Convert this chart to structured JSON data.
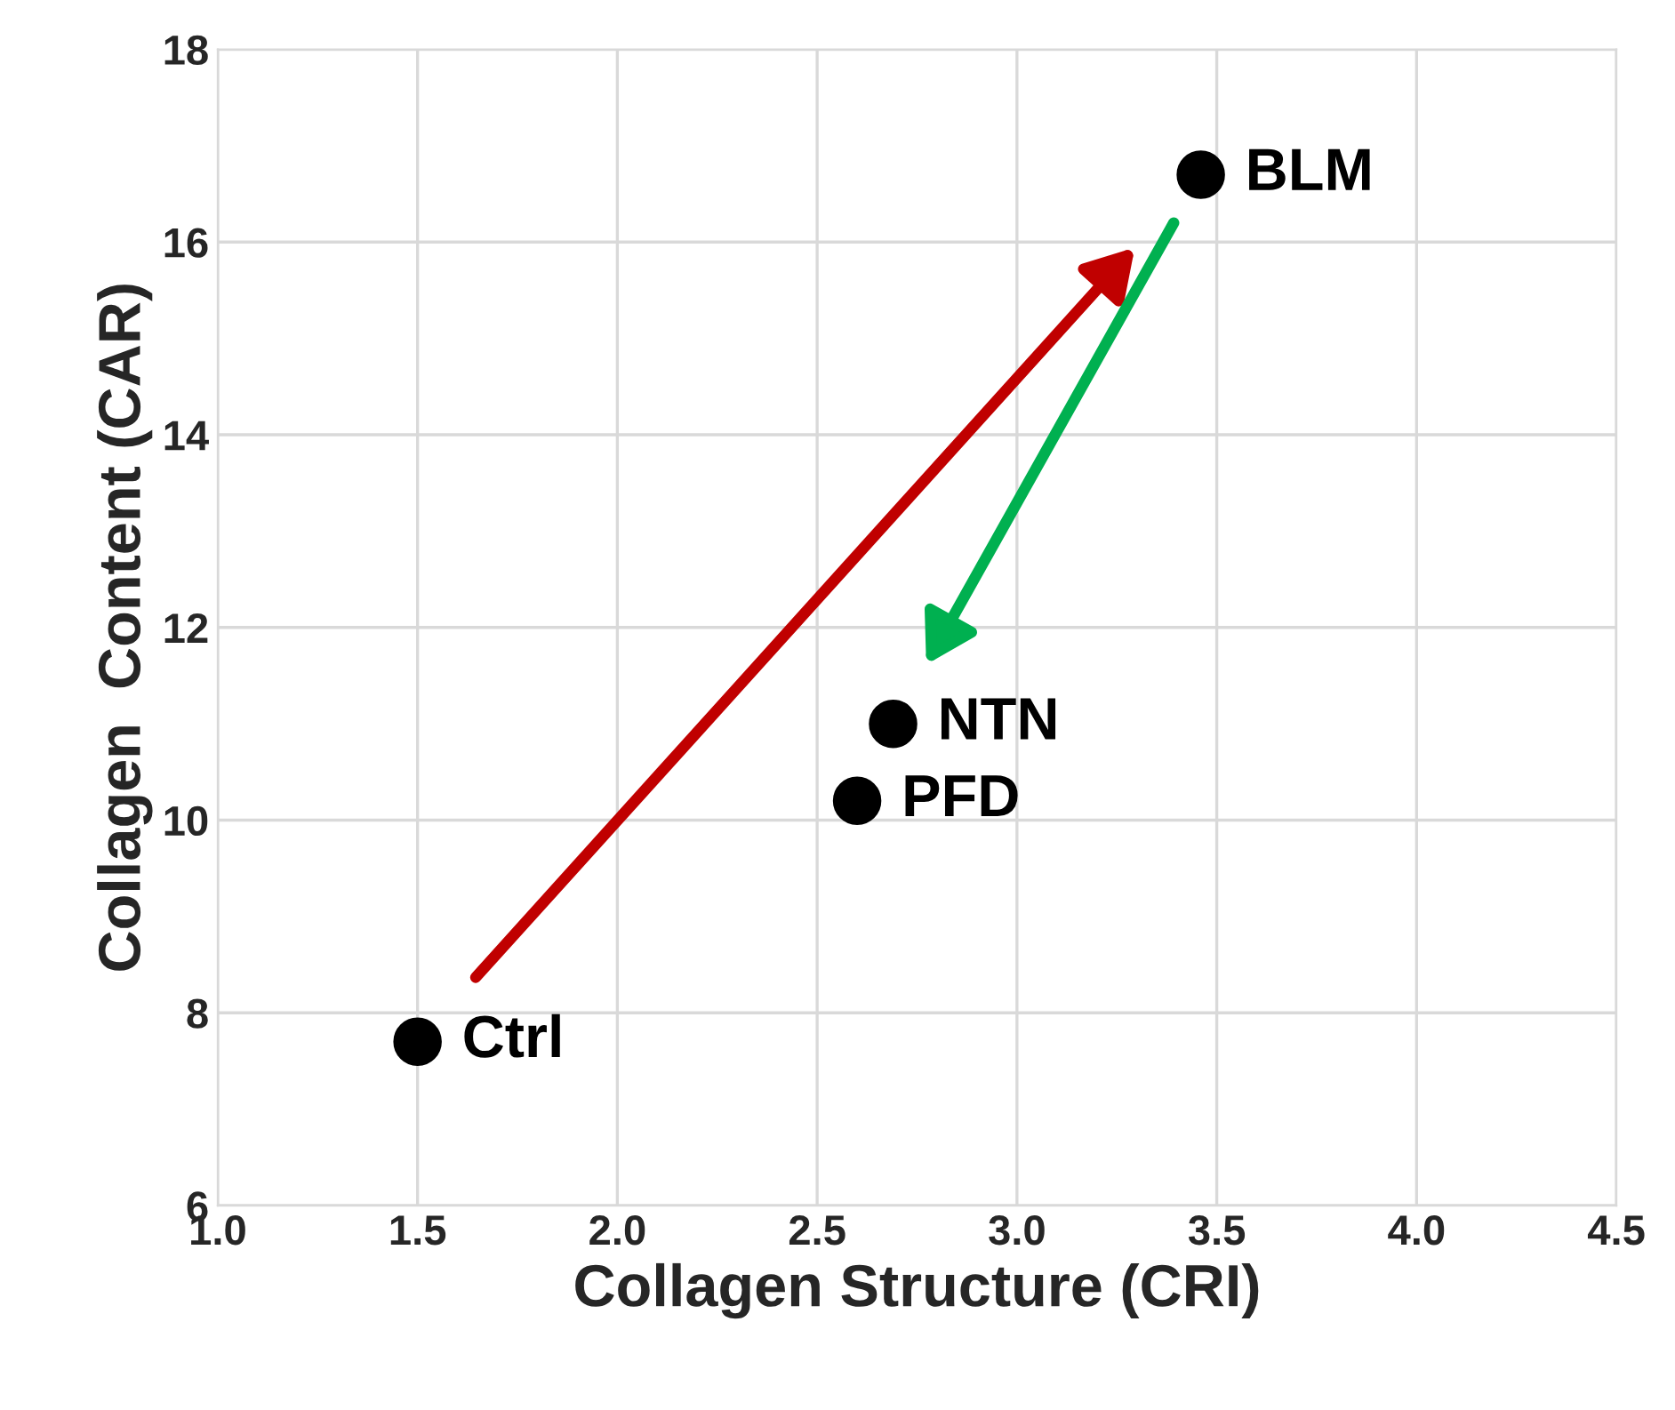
{
  "chart_data": {
    "type": "scatter",
    "xlabel": "Collagen Structure (CRI)",
    "ylabel": "Collagen  Content (CAR)",
    "series": [
      {
        "name": "Ctrl",
        "color": "#000000",
        "x": [
          1.5
        ],
        "values": [
          7.7
        ]
      },
      {
        "name": "PFD",
        "color": "#000000",
        "x": [
          2.6
        ],
        "values": [
          10.2
        ]
      },
      {
        "name": "NTN",
        "color": "#000000",
        "x": [
          2.69
        ],
        "values": [
          11.0
        ]
      },
      {
        "name": "BLM",
        "color": "#000000",
        "x": [
          3.46
        ],
        "values": [
          16.7
        ]
      }
    ],
    "xlim": [
      1.0,
      4.5
    ],
    "xticks": [
      {
        "value": 1.0,
        "label": "1.0"
      },
      {
        "value": 1.5,
        "label": "1.5"
      },
      {
        "value": 2.0,
        "label": "2.0"
      },
      {
        "value": 2.5,
        "label": "2.5"
      },
      {
        "value": 3.0,
        "label": "3.0"
      },
      {
        "value": 3.5,
        "label": "3.5"
      },
      {
        "value": 4.0,
        "label": "4.0"
      },
      {
        "value": 4.5,
        "label": "4.5"
      }
    ],
    "ylim": [
      6,
      18
    ],
    "yticks": [
      6,
      8,
      10,
      12,
      14,
      16,
      18
    ],
    "grid": true,
    "marker": "circle"
  }
}
